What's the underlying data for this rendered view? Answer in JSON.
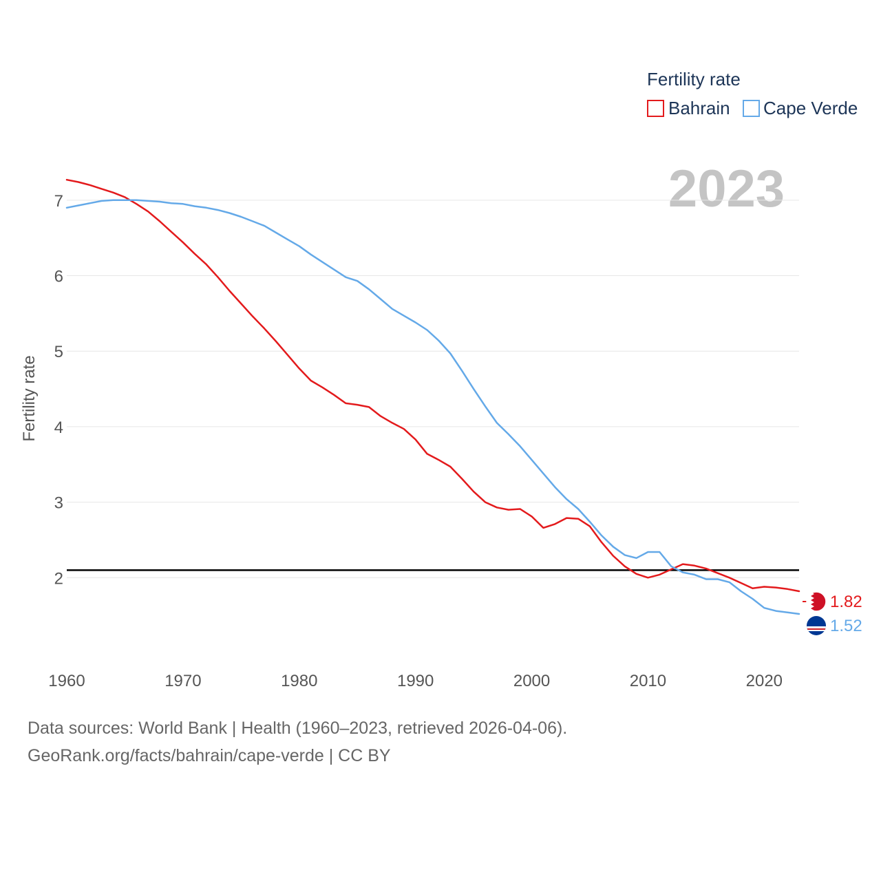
{
  "chart_data": {
    "type": "line",
    "ylabel": "Fertility rate",
    "xlabel": "",
    "xlim": [
      1960,
      2023
    ],
    "ylim": [
      1.0,
      7.6
    ],
    "yticks": [
      2,
      3,
      4,
      5,
      6,
      7
    ],
    "xticks": [
      1960,
      1970,
      1980,
      1990,
      2000,
      2010,
      2020
    ],
    "year_label": "2023",
    "legend": {
      "title": "Fertility rate",
      "position": "top-right"
    },
    "reference_line": {
      "y": 2.1,
      "color": "#000000"
    },
    "x": [
      1960,
      1961,
      1962,
      1963,
      1964,
      1965,
      1966,
      1967,
      1968,
      1969,
      1970,
      1971,
      1972,
      1973,
      1974,
      1975,
      1976,
      1977,
      1978,
      1979,
      1980,
      1981,
      1982,
      1983,
      1984,
      1985,
      1986,
      1987,
      1988,
      1989,
      1990,
      1991,
      1992,
      1993,
      1994,
      1995,
      1996,
      1997,
      1998,
      1999,
      2000,
      2001,
      2002,
      2003,
      2004,
      2005,
      2006,
      2007,
      2008,
      2009,
      2010,
      2011,
      2012,
      2013,
      2014,
      2015,
      2016,
      2017,
      2018,
      2019,
      2020,
      2021,
      2022,
      2023
    ],
    "series": [
      {
        "name": "Bahrain",
        "color": "#e31a1c",
        "end_label": "1.82",
        "values": [
          7.27,
          7.24,
          7.2,
          7.15,
          7.1,
          7.04,
          6.95,
          6.85,
          6.72,
          6.58,
          6.44,
          6.29,
          6.15,
          5.98,
          5.8,
          5.63,
          5.46,
          5.3,
          5.13,
          4.95,
          4.77,
          4.61,
          4.52,
          4.42,
          4.31,
          4.29,
          4.26,
          4.14,
          4.05,
          3.97,
          3.83,
          3.64,
          3.56,
          3.47,
          3.31,
          3.14,
          3.0,
          2.93,
          2.9,
          2.91,
          2.81,
          2.66,
          2.71,
          2.79,
          2.78,
          2.68,
          2.47,
          2.29,
          2.15,
          2.05,
          2.0,
          2.04,
          2.11,
          2.18,
          2.16,
          2.12,
          2.06,
          2.0,
          1.93,
          1.86,
          1.88,
          1.87,
          1.85,
          1.82
        ]
      },
      {
        "name": "Cape Verde",
        "color": "#64a9e8",
        "end_label": "1.52",
        "values": [
          6.9,
          6.93,
          6.96,
          6.99,
          7.0,
          7.0,
          7.0,
          6.99,
          6.98,
          6.96,
          6.95,
          6.92,
          6.9,
          6.87,
          6.83,
          6.78,
          6.72,
          6.66,
          6.57,
          6.48,
          6.39,
          6.28,
          6.18,
          6.08,
          5.98,
          5.93,
          5.82,
          5.69,
          5.56,
          5.47,
          5.38,
          5.28,
          5.14,
          4.97,
          4.74,
          4.5,
          4.27,
          4.05,
          3.9,
          3.74,
          3.56,
          3.38,
          3.2,
          3.04,
          2.91,
          2.74,
          2.56,
          2.41,
          2.3,
          2.26,
          2.34,
          2.34,
          2.15,
          2.07,
          2.04,
          1.98,
          1.98,
          1.94,
          1.82,
          1.72,
          1.6,
          1.56,
          1.54,
          1.52
        ]
      }
    ]
  },
  "footer": {
    "line1": "Data sources: World Bank | Health (1960–2023, retrieved 2026-04-06).",
    "line2": "GeoRank.org/facts/bahrain/cape-verde | CC BY"
  },
  "icons": {
    "bahrain_flag": "bahrain-flag-icon",
    "cape_verde_flag": "cape-verde-flag-icon"
  }
}
